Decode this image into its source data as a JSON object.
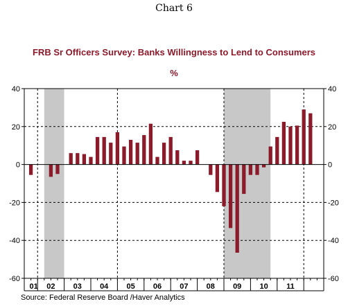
{
  "page": {
    "chart_number": "Chart 6",
    "source": "Source:  Federal Reserve Board /Haver Analytics"
  },
  "chart_data": {
    "type": "bar",
    "title": "FRB Sr Officers Survey: Banks Willingness to Lend to Consumers",
    "unit": "%",
    "ylim": [
      -60,
      40
    ],
    "yticks": [
      40,
      20,
      0,
      -20,
      -40,
      -60
    ],
    "x_range_quarters": [
      0,
      45
    ],
    "year_labels": [
      "01",
      "02",
      "03",
      "04",
      "05",
      "06",
      "07",
      "08",
      "09",
      "10",
      "11"
    ],
    "year_separators_quarter_index": [
      2,
      6,
      10,
      14,
      18,
      22,
      26,
      30,
      34,
      38,
      42
    ],
    "gridlines_dashed_year_index": [
      0,
      3,
      7,
      10
    ],
    "recessions": [
      {
        "start": 3,
        "end": 6
      },
      {
        "start": 30,
        "end": 37
      }
    ],
    "bar_color": "#8b1a2b",
    "recession_color": "#c8c8c8",
    "series": [
      {
        "values": [
          -5.5,
          null,
          null,
          -6.5,
          -5,
          null,
          6,
          6,
          5.5,
          4,
          14.5,
          14.5,
          11.5,
          17,
          9.5,
          13,
          11.5,
          15.5,
          21.5,
          4,
          11.5,
          14.5,
          7.5,
          2,
          2,
          7.5,
          null,
          -5.5,
          -14.5,
          -22,
          -33.5,
          -46.5,
          -15.5,
          -5.5,
          -5.5,
          -1.5,
          9.5,
          14.5,
          22.5,
          20,
          20.5,
          29,
          27
        ]
      }
    ]
  }
}
